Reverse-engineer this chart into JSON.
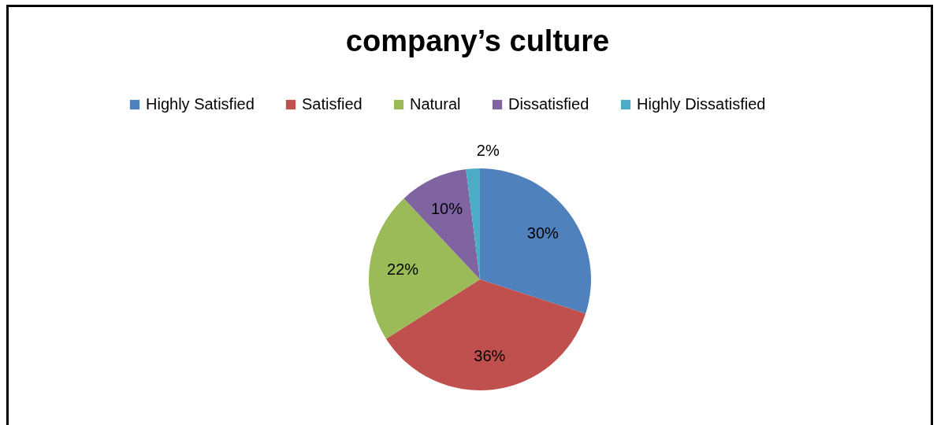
{
  "chart_data": {
    "type": "pie",
    "title": "company’s culture",
    "categories": [
      "Highly Satisfied",
      "Satisfied",
      "Natural",
      "Dissatisfied",
      "Highly Dissatisfied"
    ],
    "values": [
      30,
      36,
      22,
      10,
      2
    ],
    "colors": [
      "#4f81bd",
      "#c0504d",
      "#9bbb59",
      "#8064a2",
      "#4bacc6"
    ],
    "value_labels": [
      "30%",
      "36%",
      "22%",
      "10%",
      "2%"
    ],
    "legend": "top"
  }
}
